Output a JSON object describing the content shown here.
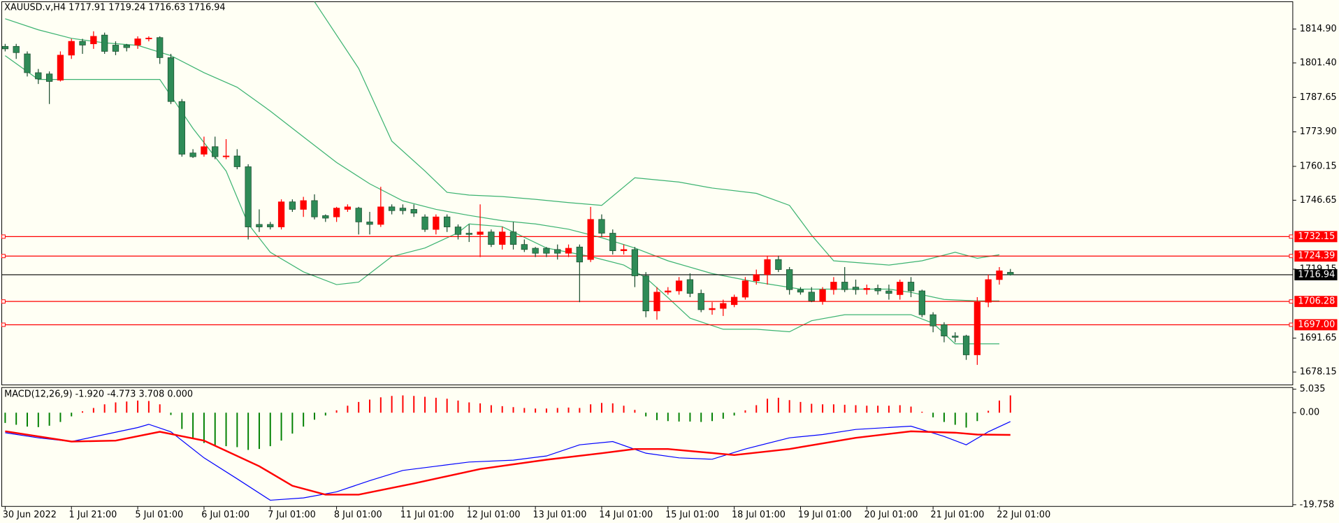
{
  "chart_data": [
    {
      "type": "candlestick",
      "title": "XAUUSD.v,H4  1717.91 1719.24 1716.63 1716.94",
      "categories": [
        "30 Jun 2022",
        null,
        null,
        null,
        null,
        null,
        "1 Jul 21:00",
        null,
        null,
        null,
        null,
        null,
        "5 Jul 01:00",
        null,
        null,
        null,
        null,
        null,
        "6 Jul 01:00",
        null,
        null,
        null,
        null,
        null,
        "7 Jul 01:00",
        null,
        null,
        null,
        null,
        null,
        "8 Jul 01:00",
        null,
        null,
        null,
        null,
        null,
        "11 Jul 01:00",
        null,
        null,
        null,
        null,
        null,
        "12 Jul 01:00",
        null,
        null,
        null,
        null,
        null,
        "13 Jul 01:00",
        null,
        null,
        null,
        null,
        null,
        "14 Jul 01:00",
        null,
        null,
        null,
        null,
        null,
        "15 Jul 01:00",
        null,
        null,
        null,
        null,
        null,
        "18 Jul 01:00",
        null,
        null,
        null,
        null,
        null,
        "19 Jul 01:00",
        null,
        null,
        null,
        null,
        null,
        "20 Jul 01:00",
        null,
        null,
        null,
        null,
        null,
        "21 Jul 01:00",
        null,
        null,
        null,
        null,
        null,
        "22 Jul 01:00",
        null
      ],
      "open": [
        1808,
        1808,
        1805,
        1797.5,
        1797,
        1794.5,
        1804.5,
        1810,
        1809,
        1812.5,
        1808.5,
        1808.5,
        1808.5,
        1811,
        1811.5,
        1803.5,
        1786,
        1765.5,
        1765,
        1768,
        1764,
        1764.3,
        1760,
        1737,
        1737,
        1736,
        1746,
        1743,
        1746.5,
        1740.5,
        1740,
        1743,
        1743.5,
        1738,
        1737,
        1744,
        1743.5,
        1743,
        1740,
        1735,
        1740,
        1736,
        1733.5,
        1733,
        1734,
        1729,
        1734,
        1729,
        1727.5,
        1727.5,
        1727,
        1725.5,
        1728,
        1723,
        1739,
        1733.5,
        1726.5,
        1727,
        1716.5,
        1702.5,
        1710,
        1710.5,
        1715,
        1709.5,
        1703,
        1703.5,
        1705,
        1708,
        1714.5,
        1717,
        1723,
        1719,
        1711,
        1710,
        1706.5,
        1711,
        1714,
        1712,
        1711,
        1711.5,
        1710.5,
        1709,
        1714,
        1710.5,
        1701,
        1697,
        1692.5,
        1692.5,
        1685,
        1706,
        1715,
        1717.91
      ],
      "high": [
        1809,
        1809,
        1806,
        1799,
        1798,
        1806,
        1811,
        1811,
        1814,
        1813.5,
        1810,
        1809,
        1812,
        1812,
        1812,
        1805,
        1787,
        1767,
        1772,
        1772,
        1771,
        1767,
        1761,
        1743,
        1738,
        1747,
        1747,
        1748,
        1749,
        1741,
        1744,
        1745,
        1744,
        1742,
        1752,
        1745,
        1745,
        1745,
        1741,
        1741,
        1741,
        1737,
        1737,
        1745,
        1735,
        1736,
        1738,
        1731,
        1728,
        1728,
        1729,
        1729,
        1729,
        1744,
        1741,
        1735,
        1729,
        1728,
        1718,
        1712,
        1712,
        1716,
        1717.5,
        1711,
        1706,
        1707,
        1709,
        1716,
        1719,
        1724.5,
        1724.5,
        1720,
        1712,
        1712,
        1712,
        1716,
        1720,
        1715,
        1713,
        1713,
        1713,
        1715,
        1716,
        1711,
        1702,
        1698,
        1694,
        1693,
        1708,
        1717,
        1720,
        1719.24
      ],
      "low": [
        1806,
        1803,
        1796,
        1793,
        1785,
        1794,
        1803,
        1805,
        1807,
        1805,
        1804.5,
        1806,
        1807,
        1810,
        1801,
        1785,
        1764,
        1763.5,
        1764,
        1763,
        1763,
        1759,
        1731,
        1734,
        1735,
        1735,
        1742,
        1740,
        1739,
        1738,
        1738,
        1742,
        1733,
        1733,
        1736,
        1741,
        1741,
        1740,
        1734,
        1733,
        1734,
        1731,
        1730,
        1724,
        1728,
        1727,
        1727,
        1726,
        1724,
        1724,
        1723,
        1724,
        1706,
        1722,
        1732,
        1725,
        1725,
        1712,
        1700,
        1699,
        1709,
        1709,
        1708,
        1702,
        1701,
        1700.5,
        1704,
        1707,
        1713,
        1713,
        1718,
        1709,
        1709,
        1706,
        1705,
        1709,
        1710,
        1709,
        1709,
        1709,
        1707,
        1707,
        1708,
        1700,
        1694,
        1690,
        1690,
        1683,
        1681,
        1704,
        1713,
        1716.63
      ],
      "close": [
        1807,
        1805.5,
        1797.5,
        1795,
        1794,
        1804.5,
        1810,
        1808.5,
        1812,
        1806,
        1806,
        1807.5,
        1811,
        1811.3,
        1803.5,
        1786,
        1765,
        1764,
        1768,
        1764,
        1764.3,
        1760,
        1736,
        1736,
        1736,
        1746,
        1743,
        1746.5,
        1740,
        1739.5,
        1743.5,
        1744,
        1738,
        1737,
        1744,
        1742.5,
        1742.5,
        1741.5,
        1735,
        1740,
        1736,
        1733,
        1733,
        1734,
        1729,
        1734,
        1729,
        1727,
        1725.5,
        1725.5,
        1725.5,
        1727.5,
        1722,
        1739,
        1733.5,
        1726.5,
        1727,
        1716.5,
        1702.5,
        1710,
        1710.5,
        1714.5,
        1709.5,
        1703,
        1703.5,
        1705.5,
        1708,
        1714.5,
        1717,
        1723,
        1719,
        1711,
        1710,
        1706.5,
        1711,
        1714,
        1711,
        1711,
        1711.5,
        1710.5,
        1709.5,
        1714,
        1710.5,
        1701,
        1696.5,
        1692.5,
        1692,
        1685,
        1706,
        1715,
        1718.5,
        1716.94
      ],
      "up_color": "#ff0000",
      "down_color": "#2e8b57",
      "series": [
        {
          "color": "#3cb371",
          "x": [
            28,
            32,
            35,
            38,
            40,
            42,
            45,
            48,
            51,
            54,
            57,
            61,
            64,
            68,
            71,
            73,
            75,
            80,
            83,
            86,
            88,
            90
          ],
          "values": [
            1825.8,
            1799.2,
            1770.2,
            1758.3,
            1749.8,
            1748.7,
            1748.1,
            1747.0,
            1745.7,
            1744.6,
            1755.6,
            1753.9,
            1751.5,
            1749.4,
            1744.6,
            1732.7,
            1722.5,
            1720.8,
            1722.5,
            1725.9,
            1723.5,
            1724.9
          ]
        },
        {
          "color": "#3cb371",
          "x": [
            0,
            3,
            6,
            9,
            12,
            15,
            18,
            21,
            24,
            27,
            30,
            33,
            36,
            39,
            42,
            45,
            48,
            51,
            54,
            57,
            60,
            64,
            68,
            72,
            76,
            80,
            82,
            85,
            88,
            90
          ],
          "values": [
            1819.0,
            1814.6,
            1811.2,
            1809.4,
            1808.4,
            1804.3,
            1797.5,
            1791.7,
            1782.2,
            1771.9,
            1761.7,
            1753.2,
            1746.4,
            1743.0,
            1740.6,
            1738.5,
            1737.2,
            1735.1,
            1731.7,
            1727.6,
            1722.5,
            1717.4,
            1714.0,
            1711.2,
            1711.2,
            1711.2,
            1709.9,
            1707.1,
            1706.5,
            1706.5
          ]
        },
        {
          "color": "#3cb371",
          "x": [
            0,
            3,
            14,
            17,
            20,
            22,
            24,
            27,
            30,
            32,
            35,
            38,
            41,
            42,
            45,
            49,
            53,
            56,
            58,
            60,
            62,
            65,
            68,
            71,
            73,
            76,
            82,
            84,
            86,
            90
          ],
          "values": [
            1804.3,
            1794.8,
            1794.8,
            1775.3,
            1758.3,
            1737.2,
            1725.9,
            1718.1,
            1713.0,
            1714.0,
            1724.2,
            1727.6,
            1733.7,
            1737.2,
            1736.1,
            1727.6,
            1724.2,
            1720.8,
            1715.7,
            1707.8,
            1699.6,
            1695.2,
            1695.2,
            1694.2,
            1698.6,
            1701.0,
            1701.0,
            1697.6,
            1689.4,
            1689.4
          ]
        }
      ],
      "levels": {
        "values": [
          1732.15,
          1724.39,
          1706.28,
          1697.0
        ],
        "value_labels": [
          "1732.15",
          "1724.39",
          "1706.28",
          "1697.00"
        ],
        "color": "#ff0000"
      },
      "ylim": [
        1673.0,
        1825.8
      ],
      "yticks": [
        {
          "value": 1814.9,
          "label": "1814.90"
        },
        {
          "value": 1801.4,
          "label": "1801.40"
        },
        1787.65,
        {
          "value": 1773.9,
          "label": "1773.90"
        },
        1760.15,
        1746.65,
        1719.15,
        1691.65,
        1678.15
      ]
    },
    {
      "type": "macd",
      "title": "MACD(12,26,9) -1.920 -4.773 3.708 0.000",
      "histogram": {
        "values": [
          -2.2,
          -2.6,
          -3.0,
          -3.1,
          -2.8,
          -2.0,
          -0.8,
          0.3,
          1.0,
          1.8,
          2.2,
          2.4,
          2.6,
          2.5,
          1.8,
          -0.5,
          -3.5,
          -5.5,
          -6.5,
          -7.0,
          -7.2,
          -7.4,
          -8.0,
          -7.8,
          -7.2,
          -6.0,
          -4.5,
          -3.0,
          -1.5,
          -0.6,
          0.5,
          1.5,
          2.3,
          2.8,
          3.3,
          3.6,
          3.7,
          3.6,
          3.4,
          3.2,
          3.0,
          2.6,
          2.2,
          2.0,
          1.6,
          1.4,
          1.2,
          1.0,
          0.9,
          0.9,
          1.0,
          1.1,
          1.0,
          1.8,
          2.1,
          2.0,
          1.5,
          0.6,
          -0.8,
          -1.6,
          -1.8,
          -1.9,
          -1.9,
          -2.0,
          -1.8,
          -1.3,
          -0.6,
          0.5,
          1.6,
          3.0,
          3.2,
          2.7,
          2.3,
          1.9,
          1.8,
          1.8,
          1.7,
          1.6,
          1.5,
          1.5,
          1.5,
          1.6,
          1.3,
          0.2,
          -1.0,
          -2.0,
          -2.6,
          -3.2,
          -1.8,
          0.4,
          2.6,
          3.708
        ],
        "up_color": "#ff0000",
        "down_color": "#008000"
      },
      "series": [
        {
          "color": "#0000ff",
          "line_width": 1,
          "x": [
            0,
            3,
            6,
            9,
            12,
            13,
            15,
            18,
            21,
            24,
            27,
            30,
            33,
            36,
            39,
            42,
            46,
            49,
            52,
            55,
            58,
            61,
            64,
            67,
            71,
            74,
            77,
            82,
            85,
            87,
            89,
            91
          ],
          "values": [
            -4.3,
            -5.4,
            -6.2,
            -4.7,
            -3.2,
            -2.5,
            -4.1,
            -9.7,
            -14.2,
            -18.8,
            -18.3,
            -17.0,
            -14.6,
            -12.4,
            -11.5,
            -10.6,
            -10.2,
            -9.3,
            -6.9,
            -6.2,
            -8.7,
            -9.7,
            -10.0,
            -7.8,
            -5.4,
            -4.7,
            -3.6,
            -2.9,
            -5.1,
            -6.9,
            -4.1,
            -1.92
          ]
        },
        {
          "color": "#ff0000",
          "line_width": 2,
          "x": [
            0,
            6,
            10,
            14,
            18,
            23,
            26,
            29,
            32,
            37,
            43,
            49,
            54,
            57,
            60,
            66,
            71,
            77,
            82,
            86,
            88,
            91
          ],
          "values": [
            -4.0,
            -6.2,
            -6.0,
            -4.1,
            -6.0,
            -11.5,
            -15.7,
            -17.6,
            -17.6,
            -15.2,
            -12.1,
            -10.1,
            -8.7,
            -7.8,
            -7.8,
            -9.1,
            -7.8,
            -5.4,
            -4.0,
            -4.3,
            -4.7,
            -4.773
          ]
        }
      ],
      "ylim": [
        -19.758,
        5.035
      ],
      "yticks": [
        5.035,
        {
          "value": 0,
          "label": "0.00"
        },
        -19.758
      ]
    }
  ]
}
